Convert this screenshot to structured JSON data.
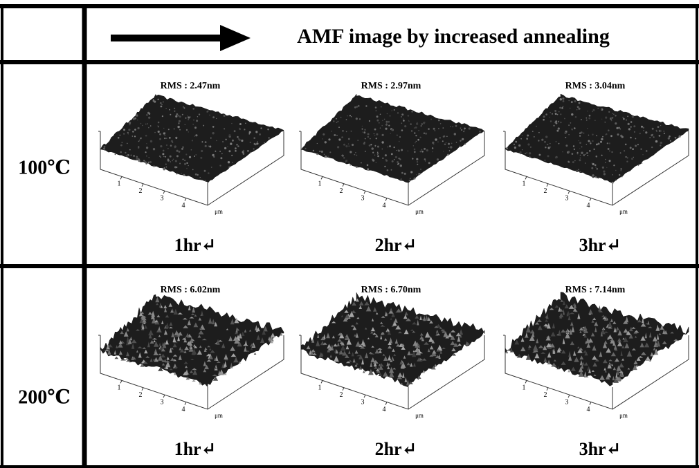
{
  "header": {
    "title": "AMF image by increased annealing"
  },
  "axis": {
    "ticks": [
      "1",
      "2",
      "3",
      "4"
    ],
    "unit": "μm"
  },
  "rows": [
    {
      "label": "100℃",
      "cells": [
        {
          "rms": "RMS : 2.47nm",
          "time": "1hr↵"
        },
        {
          "rms": "RMS : 2.97nm",
          "time": "2hr↵"
        },
        {
          "rms": "RMS : 3.04nm",
          "time": "3hr↵"
        }
      ]
    },
    {
      "label": "200℃",
      "cells": [
        {
          "rms": "RMS : 6.02nm",
          "time": "1hr↵"
        },
        {
          "rms": "RMS : 6.70nm",
          "time": "2hr↵"
        },
        {
          "rms": "RMS : 7.14nm",
          "time": "3hr↵"
        }
      ]
    }
  ]
}
